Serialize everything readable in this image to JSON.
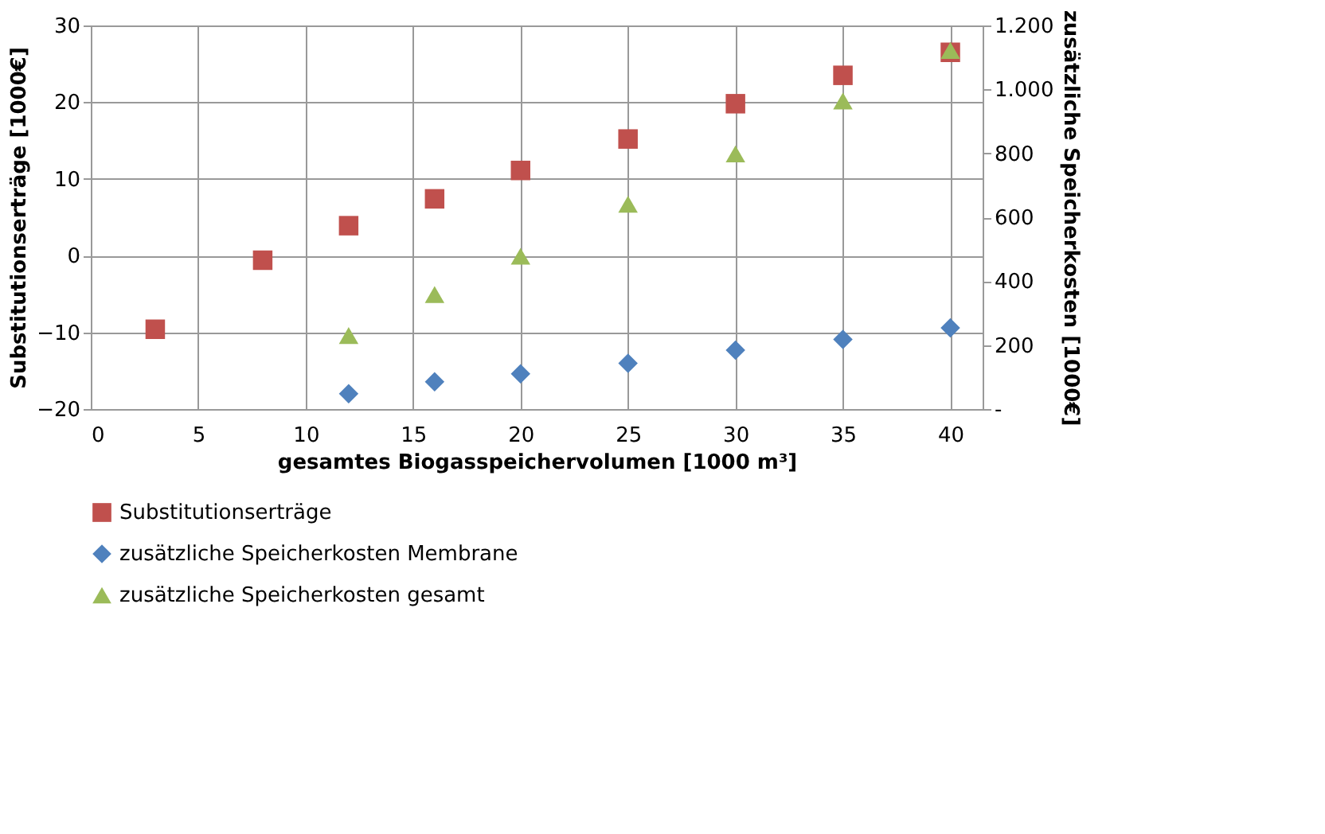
{
  "chart_data": {
    "type": "scatter",
    "xlabel": "gesamtes Biogasspeichervolumen  [1000 m³]",
    "ylabel": "Substitutionserträge [1000€]",
    "y2label": "zusätzliche Speicherkosten [1000€]",
    "xlim": [
      0,
      41.5
    ],
    "xticks": [
      0,
      5,
      10,
      15,
      20,
      25,
      30,
      35,
      40
    ],
    "ylim": [
      -20,
      30
    ],
    "yticks": [
      -20,
      -10,
      0,
      10,
      20,
      30
    ],
    "y2lim": [
      0,
      1200
    ],
    "y2ticks": [
      {
        "value": 0,
        "label": "-"
      },
      200,
      400,
      600,
      800,
      {
        "value": 1000,
        "label": "1.000"
      },
      {
        "value": 1200,
        "label": "1.200"
      }
    ],
    "grid": true,
    "legend": "bottom",
    "series": [
      {
        "name": "Substitutionserträge",
        "color": "#c0504d",
        "marker": "square",
        "x": [
          3,
          8,
          12,
          16,
          20,
          25,
          30,
          35,
          40
        ],
        "values": [
          -9.6,
          -0.6,
          3.9,
          7.4,
          11.1,
          15.2,
          19.8,
          23.5,
          26.5
        ]
      },
      {
        "name": "zusätzliche Speicherkosten Membrane",
        "color": "#4f81bd",
        "marker": "diamond",
        "axis": "y2",
        "x": [
          12,
          16,
          20,
          25,
          30,
          35,
          40
        ],
        "values": [
          48,
          85,
          110,
          143,
          184,
          218,
          254
        ]
      },
      {
        "name": "zusätzliche Speicherkosten gesamt",
        "color": "#9bbb59",
        "marker": "triangle",
        "axis": "y2",
        "x": [
          12,
          16,
          20,
          25,
          30,
          35,
          40
        ],
        "values": [
          230,
          358,
          478,
          641,
          798,
          964,
          1122
        ]
      }
    ]
  }
}
